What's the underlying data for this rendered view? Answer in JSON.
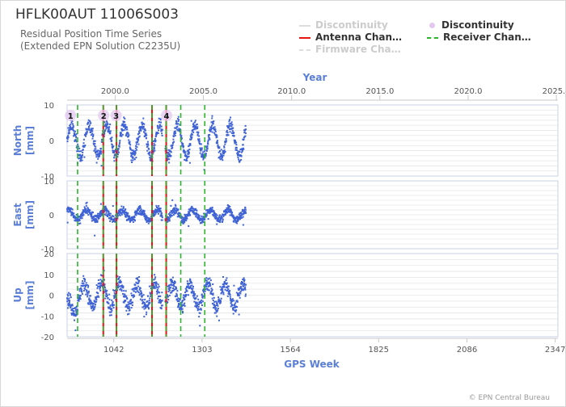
{
  "title": "HFLK00AUT 11006S003",
  "subtitle_1": "Residual Position Time Series",
  "subtitle_2": "(Extended EPN Solution C2235U)",
  "credit": "© EPN Central Bureau",
  "legend": [
    {
      "label": "Discontinuity",
      "style": "line",
      "color": "#dddddd",
      "disabled": true
    },
    {
      "label": "Discontinuity",
      "style": "dot",
      "color": "#e3c7f0",
      "disabled": false
    },
    {
      "label": "Antenna Chan…",
      "style": "line",
      "color": "#e8140f",
      "disabled": false
    },
    {
      "label": "Receiver Chan…",
      "style": "dash",
      "color": "#2db52d",
      "disabled": false
    },
    {
      "label": "Firmware Cha…",
      "style": "dash",
      "color": "#dddddd",
      "disabled": true
    }
  ],
  "colors": {
    "data_points": "#3f63d4",
    "axis_label": "#5b7fd6",
    "antenna": "#e8140f",
    "receiver": "#2db52d",
    "discontinuity": "#e3c7f0",
    "grid": "#e6e6e6"
  },
  "chart_data": {
    "type": "scatter",
    "top_axis": {
      "label": "Year",
      "ticks": [
        "2000.0",
        "2005.0",
        "2010.0",
        "2015.0",
        "2020.0",
        "2025.0"
      ],
      "tick_values": [
        2000.0,
        2005.0,
        2010.0,
        2015.0,
        2020.0,
        2025.0
      ]
    },
    "x_axis": {
      "label": "GPS Week",
      "range": [
        904,
        2355
      ],
      "ticks": [
        1042,
        1303,
        1564,
        1825,
        2086,
        2347
      ]
    },
    "data_span_weeks": [
      904,
      1433
    ],
    "panels": [
      {
        "name": "North",
        "unit": "[mm]",
        "ylim": [
          -10,
          10
        ],
        "yticks": [
          10,
          0,
          -10
        ],
        "seasonal_amplitude": 4.5,
        "noise": 1.8
      },
      {
        "name": "East",
        "unit": "[mm]",
        "ylim": [
          -10,
          10
        ],
        "yticks": [
          10,
          0,
          -10
        ],
        "seasonal_amplitude": 1.5,
        "noise": 1.2
      },
      {
        "name": "Up",
        "unit": "[mm]",
        "ylim": [
          -20,
          20
        ],
        "yticks": [
          20,
          10,
          0,
          -10,
          -20
        ],
        "seasonal_amplitude": 5.5,
        "noise": 4.0
      }
    ],
    "antenna_changes": [
      1011,
      1050,
      1155,
      1197
    ],
    "receiver_changes": [
      935,
      1011,
      1050,
      1155,
      1197,
      1240,
      1311
    ],
    "discontinuities": [
      {
        "label": "1",
        "week": 914
      },
      {
        "label": "2",
        "week": 1012
      },
      {
        "label": "3",
        "week": 1049
      },
      {
        "label": "4",
        "week": 1198
      }
    ]
  }
}
